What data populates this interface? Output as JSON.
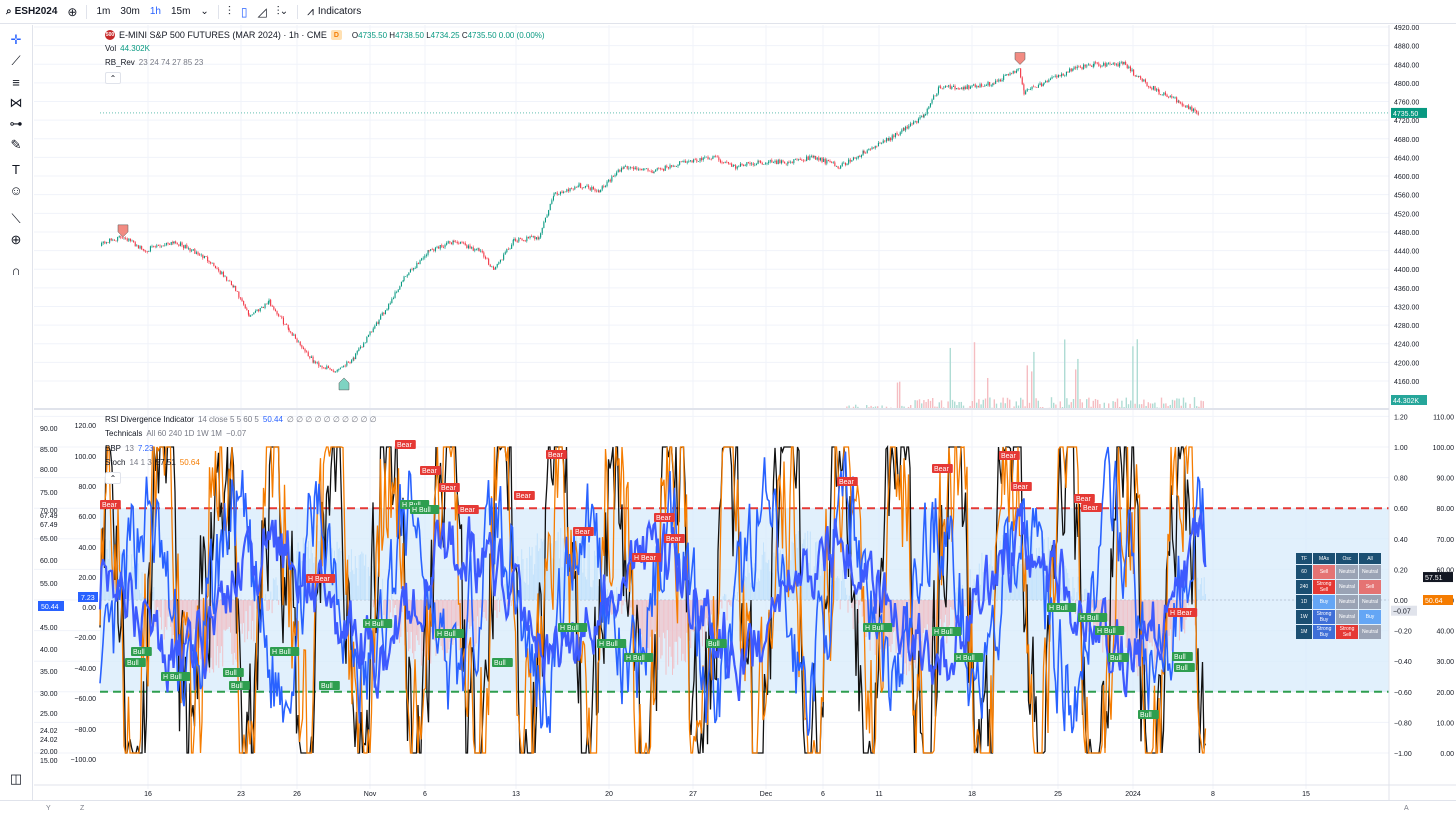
{
  "toolbar": {
    "symbol": "ESH2024",
    "intervals": [
      {
        "label": "1m",
        "active": false
      },
      {
        "label": "30m",
        "active": false
      },
      {
        "label": "1h",
        "active": true
      },
      {
        "label": "15m",
        "active": false
      }
    ],
    "indicators_label": "Indicators"
  },
  "left_tools": [
    "crosshair-icon",
    "trend-line-icon",
    "fib-icon",
    "pattern-icon",
    "prediction-icon",
    "brush-icon",
    "text-icon",
    "emoji-icon",
    "ruler-icon",
    "zoom-icon",
    "magnet-icon"
  ],
  "legend": {
    "logo_text": "500",
    "title": "E-MINI S&P 500 FUTURES (MAR 2024) · 1h · CME",
    "badge": "D",
    "ohlc": {
      "o_label": "O",
      "o": "4735.50",
      "h_label": "H",
      "h": "4738.50",
      "l_label": "L",
      "l": "4734.25",
      "c_label": "C",
      "c": "4735.50",
      "change": "0.00 (0.00%)"
    },
    "vol_label": "Vol",
    "vol_value": "44.302K",
    "rb_label": "RB_Rev",
    "rb_params": "23 24 74 27 85 23"
  },
  "lower_legend": {
    "rsi_label": "RSI Divergence Indicator",
    "rsi_params": "14 close 5 5 60 5",
    "rsi_value": "50.44",
    "rsi_empty": "∅ ∅ ∅ ∅ ∅ ∅ ∅ ∅ ∅ ∅",
    "tech_label": "Technicals",
    "tech_params": "All 60 240 1D 1W 1M",
    "tech_value": "−0.07",
    "bbp_label": "BBP",
    "bbp_params": "13",
    "bbp_value": "7.23",
    "stoch_label": "Stoch",
    "stoch_params": "14 1 3",
    "stoch_k": "57.51",
    "stoch_d": "50.64"
  },
  "price_axis": {
    "ticks": [
      "4920.00",
      "4880.00",
      "4840.00",
      "4800.00",
      "4760.00",
      "4720.00",
      "4680.00",
      "4640.00",
      "4600.00",
      "4560.00",
      "4520.00",
      "4480.00",
      "4440.00",
      "4400.00",
      "4360.00",
      "4320.00",
      "4280.00",
      "4240.00",
      "4200.00",
      "4160.00"
    ],
    "last_price": "4735.50",
    "volume_tag": "44.302K"
  },
  "osc_axis_right1": {
    "ticks": [
      "1.20",
      "1.00",
      "0.80",
      "0.60",
      "0.40",
      "0.20",
      "0.00",
      "−0.20",
      "−0.40",
      "−0.60",
      "−0.80",
      "−1.00"
    ],
    "tag": "−0.07",
    "tag2": "57.51"
  },
  "osc_axis_right2": {
    "ticks": [
      "110.00",
      "100.00",
      "90.00",
      "80.00",
      "70.00",
      "60.00",
      "50.00",
      "40.00",
      "30.00",
      "20.00",
      "10.00",
      "0.00"
    ],
    "tag": "50.64"
  },
  "osc_axis_left1": {
    "ticks": [
      "90.00",
      "85.00",
      "80.00",
      "75.00",
      "70.00",
      "67.49",
      "67.49",
      "65.00",
      "60.00",
      "55.00",
      "50.00",
      "45.00",
      "40.00",
      "35.00",
      "30.00",
      "25.00",
      "24.02",
      "24.02",
      "20.00",
      "15.00"
    ],
    "tag": "50.44"
  },
  "osc_axis_left2": {
    "ticks": [
      "120.00",
      "100.00",
      "80.00",
      "60.00",
      "40.00",
      "20.00",
      "0.00",
      "−20.00",
      "−40.00",
      "−60.00",
      "−80.00",
      "−100.00"
    ],
    "tag": "7.23"
  },
  "time_axis": {
    "ticks": [
      "16",
      "23",
      "26",
      "Nov",
      "6",
      "13",
      "20",
      "27",
      "Dec",
      "6",
      "11",
      "18",
      "25",
      "2024",
      "8",
      "15"
    ]
  },
  "markers": {
    "bear": "Bear",
    "h_bear": "H Bear",
    "bull": "Bull",
    "h_bull": "H Bull"
  },
  "technicals_table": {
    "headers": [
      "TF",
      "MAs",
      "Osc",
      "All"
    ],
    "rows": [
      {
        "tf": "60",
        "mas": "Sell",
        "osc": "Neutral",
        "all": "Neutral",
        "mas_class": "c-sell",
        "osc_class": "c-neu",
        "all_class": "c-neu"
      },
      {
        "tf": "240",
        "mas": "Strong Sell",
        "osc": "Neutral",
        "all": "Sell",
        "mas_class": "c-ssell",
        "osc_class": "c-neu",
        "all_class": "c-sell"
      },
      {
        "tf": "1D",
        "mas": "Buy",
        "osc": "Neutral",
        "all": "Neutral",
        "mas_class": "c-buy",
        "osc_class": "c-neu",
        "all_class": "c-neu"
      },
      {
        "tf": "1W",
        "mas": "Strong Buy",
        "osc": "Neutral",
        "all": "Buy",
        "mas_class": "c-sbuy",
        "osc_class": "c-neu",
        "all_class": "c-buy"
      },
      {
        "tf": "1M",
        "mas": "Strong Buy",
        "osc": "Strong Sell",
        "all": "Neutral",
        "mas_class": "c-sbuy",
        "osc_class": "c-ssell",
        "all_class": "c-neu"
      }
    ]
  },
  "bottom": {
    "left_a": "Y",
    "left_b": "Z",
    "right_a": "A"
  },
  "colors": {
    "up": "#089981",
    "down": "#f23645",
    "rsi_blue": "#2962ff",
    "stoch_orange": "#f57c00",
    "ob_red": "#e53935",
    "os_green": "#2e9e4f"
  },
  "chart_data": {
    "type": "line",
    "price_series": {
      "x": [
        "16",
        "23",
        "26",
        "Nov",
        "6",
        "13",
        "20",
        "27",
        "Dec",
        "6",
        "11",
        "18",
        "25",
        "2024"
      ],
      "close": [
        4460,
        4420,
        4270,
        4180,
        4390,
        4470,
        4590,
        4620,
        4630,
        4650,
        4720,
        4800,
        4830,
        4735.5
      ]
    },
    "oscillator_levels": {
      "overbought": 0.6,
      "oversold": -0.6
    },
    "ylim_price": [
      4140,
      4930
    ]
  }
}
